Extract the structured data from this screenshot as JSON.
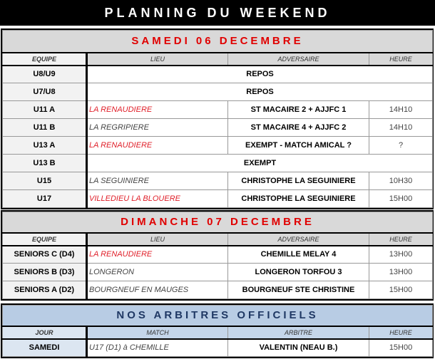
{
  "title": "PLANNING DU WEEKEND",
  "saturday": {
    "heading": "SAMEDI 06 DECEMBRE",
    "columns": [
      "EQUIPE",
      "LIEU",
      "ADVERSAIRE",
      "HEURE"
    ],
    "rows": [
      {
        "team": "U8/U9",
        "merged": "REPOS"
      },
      {
        "team": "U7/U8",
        "merged": "REPOS"
      },
      {
        "team": "U11 A",
        "place": "LA RENAUDIERE",
        "home": true,
        "opponent": "ST MACAIRE 2 + AJJFC 1",
        "time": "14H10"
      },
      {
        "team": "U11 B",
        "place": "LA REGRIPIERE",
        "home": false,
        "opponent": "ST MACAIRE 4 + AJJFC 2",
        "time": "14H10"
      },
      {
        "team": "U13 A",
        "place": "LA RENAUDIERE",
        "home": true,
        "opponent": "EXEMPT - MATCH AMICAL ?",
        "time": "?"
      },
      {
        "team": "U13 B",
        "merged": "EXEMPT"
      },
      {
        "team": "U15",
        "place": "LA SEGUINIERE",
        "home": false,
        "opponent": "CHRISTOPHE LA SEGUINIERE",
        "time": "10H30"
      },
      {
        "team": "U17",
        "place": "VILLEDIEU LA BLOUERE",
        "home": true,
        "opponent": "CHRISTOPHE LA SEGUINIERE",
        "time": "15H00"
      }
    ]
  },
  "sunday": {
    "heading": "DIMANCHE 07 DECEMBRE",
    "columns": [
      "EQUIPE",
      "LIEU",
      "ADVERSAIRE",
      "HEURE"
    ],
    "rows": [
      {
        "team": "SENIORS C (D4)",
        "place": "LA RENAUDIERE",
        "home": true,
        "opponent": "CHEMILLE MELAY 4",
        "time": "13H00"
      },
      {
        "team": "SENIORS B (D3)",
        "place": "LONGERON",
        "home": false,
        "opponent": "LONGERON TORFOU 3",
        "time": "13H00"
      },
      {
        "team": "SENIORS A (D2)",
        "place": "BOURGNEUF EN MAUGES",
        "home": false,
        "opponent": "BOURGNEUF STE CHRISTINE",
        "time": "15H00"
      }
    ]
  },
  "referees": {
    "heading": "NOS ARBITRES OFFICIELS",
    "columns": [
      "JOUR",
      "MATCH",
      "ARBITRE",
      "HEURE"
    ],
    "rows": [
      {
        "team": "SAMEDI",
        "place": "U17 (D1) à CHEMILLE",
        "home": false,
        "opponent": "VALENTIN (NEAU B.)",
        "time": "15H00"
      }
    ]
  },
  "colors": {
    "home": "#e0202a",
    "heading_red": "#e00000",
    "heading_blue": "#1f3864",
    "referee_bg": "#b8cce4"
  }
}
